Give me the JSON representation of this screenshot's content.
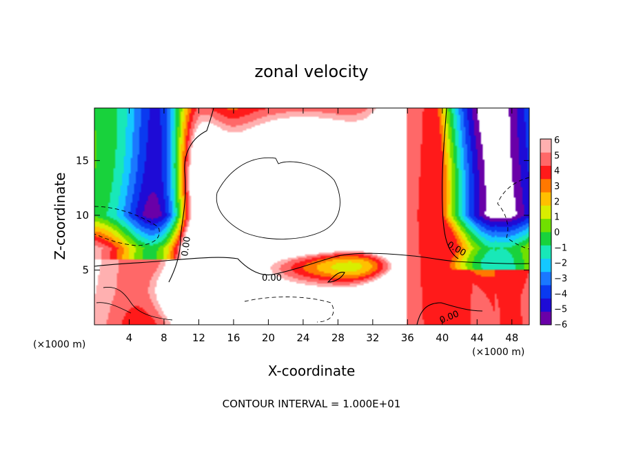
{
  "chart_data": {
    "type": "heatmap",
    "title": "zonal velocity",
    "xlabel": "X-coordinate",
    "ylabel": "Z-coordinate",
    "x_unit_left": "(×1000 m)",
    "x_unit_right": "(×1000 m)",
    "footer": "CONTOUR INTERVAL = 1.000E+01",
    "xlim": [
      0,
      50
    ],
    "ylim": [
      0,
      19.8
    ],
    "x_ticks": [
      4,
      8,
      12,
      16,
      20,
      24,
      28,
      32,
      36,
      40,
      44,
      48
    ],
    "y_ticks": [
      5,
      10,
      15
    ],
    "colorbar": {
      "levels": [
        -6,
        -5,
        -4,
        -3,
        -2,
        -1,
        0,
        1,
        2,
        3,
        4,
        5,
        6
      ],
      "labels": [
        "6",
        "5",
        "4",
        "3",
        "2",
        "1",
        "0",
        "−1",
        "−2",
        "−3",
        "−4",
        "−5",
        "−6"
      ]
    },
    "contour_labels": [
      "0.00",
      "0.00",
      "0.00",
      "0.00"
    ],
    "color_stops": [
      {
        "v": -6.5,
        "c": "#6a00a8"
      },
      {
        "v": -5.5,
        "c": "#1e0bd6"
      },
      {
        "v": -4.5,
        "c": "#0a3af0"
      },
      {
        "v": -3.5,
        "c": "#1a78ff"
      },
      {
        "v": -2.5,
        "c": "#14c8ff"
      },
      {
        "v": -1.5,
        "c": "#18e8b8"
      },
      {
        "v": -0.5,
        "c": "#18d23c"
      },
      {
        "v": 0.5,
        "c": "#70e000"
      },
      {
        "v": 1.5,
        "c": "#d8ee00"
      },
      {
        "v": 2.5,
        "c": "#ffc000"
      },
      {
        "v": 3.5,
        "c": "#ff7800"
      },
      {
        "v": 4.5,
        "c": "#ff1a1a"
      },
      {
        "v": 5.5,
        "c": "#ff6868"
      },
      {
        "v": 6.5,
        "c": "#ffb0b0"
      }
    ]
  }
}
